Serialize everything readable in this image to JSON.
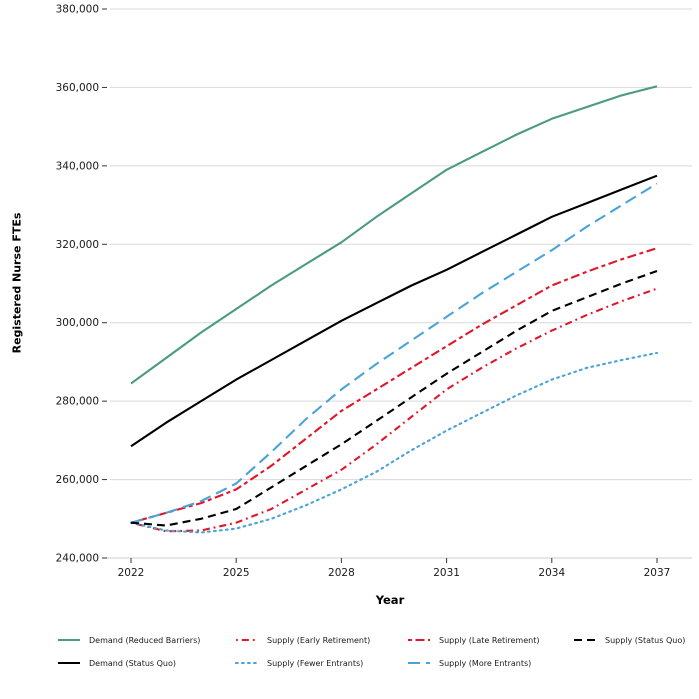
{
  "chart_data": {
    "type": "line",
    "title": "",
    "xlabel": "Year",
    "ylabel": "Registered Nurse FTEs",
    "xlim": [
      2022,
      2037
    ],
    "ylim": [
      240000,
      380000
    ],
    "x_ticks": [
      2022,
      2025,
      2028,
      2031,
      2034,
      2037
    ],
    "y_ticks": [
      240000,
      260000,
      280000,
      300000,
      320000,
      340000,
      360000,
      380000
    ],
    "grid": "horizontal",
    "legend_position": "bottom",
    "x": [
      2022,
      2023,
      2024,
      2025,
      2026,
      2027,
      2028,
      2029,
      2030,
      2031,
      2032,
      2033,
      2034,
      2035,
      2036,
      2037
    ],
    "series": [
      {
        "name": "Demand (Reduced Barriers)",
        "color": "#4a9b7f",
        "linetype": "solid",
        "values": [
          284500,
          291000,
          297500,
          303500,
          309500,
          315000,
          320500,
          327000,
          333000,
          339000,
          343500,
          348000,
          352000,
          355000,
          358000,
          360300
        ]
      },
      {
        "name": "Demand (Status Quo)",
        "color": "#000000",
        "linetype": "solid",
        "values": [
          268500,
          274500,
          280000,
          285500,
          290500,
          295500,
          300500,
          305000,
          309500,
          313500,
          318000,
          322500,
          327000,
          330500,
          334000,
          337500
        ]
      },
      {
        "name": "Supply (Early Retirement)",
        "color": "#e0162b",
        "linetype": "dotdash",
        "values": [
          249000,
          246800,
          247000,
          249000,
          252500,
          257500,
          262500,
          269000,
          276000,
          283000,
          288500,
          293500,
          298000,
          302000,
          305500,
          308700
        ]
      },
      {
        "name": "Supply (Fewer Entrants)",
        "color": "#4aa3d8",
        "linetype": "dotted",
        "values": [
          249000,
          247000,
          246500,
          247500,
          250000,
          253500,
          257500,
          262000,
          267500,
          272500,
          277000,
          281500,
          285500,
          288500,
          290500,
          292300
        ]
      },
      {
        "name": "Supply (Late Retirement)",
        "color": "#e0162b",
        "linetype": "twodash",
        "values": [
          249000,
          251500,
          254000,
          257500,
          263500,
          270500,
          277500,
          283000,
          288500,
          294000,
          299500,
          304500,
          309500,
          313000,
          316200,
          319000
        ]
      },
      {
        "name": "Supply (More Entrants)",
        "color": "#4aa3d8",
        "linetype": "longdash",
        "values": [
          249000,
          251500,
          254500,
          259000,
          267000,
          275500,
          283000,
          289500,
          295500,
          301500,
          307500,
          313000,
          318500,
          324500,
          330000,
          335500
        ]
      },
      {
        "name": "Supply (Status Quo)",
        "color": "#000000",
        "linetype": "dashed",
        "values": [
          249000,
          248300,
          250000,
          252500,
          258000,
          263500,
          269000,
          275000,
          281000,
          287000,
          292500,
          298000,
          303000,
          306500,
          310000,
          313200
        ]
      }
    ],
    "legend_order": [
      "Demand (Reduced Barriers)",
      "Supply (Early Retirement)",
      "Supply (Late Retirement)",
      "Supply (Status Quo)",
      "Demand (Status Quo)",
      "Supply (Fewer Entrants)",
      "Supply (More Entrants)"
    ],
    "colors": {
      "demand_reduced_barriers": "#4a9b7f",
      "supply_red": "#e0162b",
      "supply_blue": "#4aa3d8",
      "black": "#000000",
      "gridline": "#d9d9d9",
      "axis_line": "#cccccc",
      "tick_mark": "#333333",
      "text": "#1a1a1a"
    }
  }
}
